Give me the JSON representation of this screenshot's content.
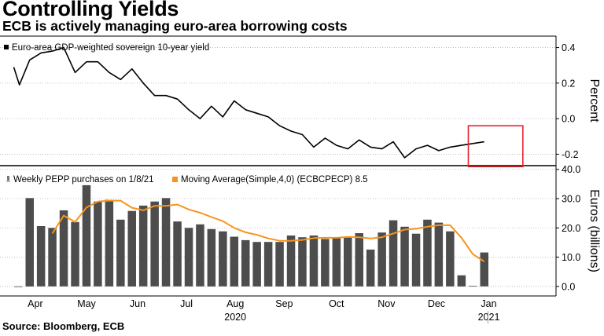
{
  "title": "Controlling Yields",
  "subtitle": "ECB is actively managing euro-area borrowing costs",
  "source": "Source: Bloomberg, ECB",
  "chart_data": [
    {
      "type": "line",
      "legend": "Euro-area GDP-weighted sovereign 10-year yield",
      "ylabel": "Percent",
      "ylim": [
        -0.26,
        0.46
      ],
      "yticks": [
        "0.4",
        "0.2",
        "0.0",
        "-0.2"
      ],
      "ytick_values": [
        0.4,
        0.2,
        0.0,
        -0.2
      ],
      "x_unit": "week index (0 = first week of April 2020)",
      "series": [
        {
          "color": "#000000",
          "x": [
            -1.4,
            -0.9,
            0,
            1,
            2,
            3,
            4,
            5,
            6,
            7,
            8,
            9,
            10,
            11,
            12,
            13,
            14,
            15,
            16,
            17,
            18,
            19,
            20,
            21,
            22,
            23,
            24,
            25,
            26,
            27,
            28,
            29,
            30,
            31,
            32,
            33,
            34,
            35,
            36,
            37,
            38,
            39,
            40
          ],
          "values": [
            0.29,
            0.19,
            0.33,
            0.37,
            0.38,
            0.4,
            0.26,
            0.32,
            0.32,
            0.26,
            0.22,
            0.28,
            0.2,
            0.13,
            0.13,
            0.11,
            0.05,
            0.0,
            0.07,
            0.01,
            0.1,
            0.05,
            0.03,
            0.01,
            -0.04,
            -0.07,
            -0.09,
            -0.16,
            -0.11,
            -0.15,
            -0.17,
            -0.12,
            -0.16,
            -0.17,
            -0.13,
            -0.22,
            -0.17,
            -0.15,
            -0.18,
            -0.16,
            -0.15,
            -0.14,
            -0.13
          ]
        }
      ],
      "highlight_box": {
        "x_range": [
          38.6,
          43.4
        ],
        "y_range": [
          -0.27,
          -0.04
        ],
        "color": "#e3242b"
      }
    },
    {
      "type": "bar",
      "ylabel": "Euros (billions)",
      "ylim": [
        -3,
        41
      ],
      "yticks": [
        "40.0",
        "30.0",
        "20.0",
        "10.0",
        "0.0"
      ],
      "ytick_values": [
        40,
        30,
        20,
        10,
        0
      ],
      "x_unit": "week index (0 = first week of April 2020)",
      "x": [
        -1,
        0,
        1,
        2,
        3,
        4,
        5,
        6,
        7,
        8,
        9,
        10,
        11,
        12,
        13,
        14,
        15,
        16,
        17,
        18,
        19,
        20,
        21,
        22,
        23,
        24,
        25,
        26,
        27,
        28,
        29,
        30,
        31,
        32,
        33,
        34,
        35,
        36,
        37,
        38,
        39,
        40
      ],
      "series": [
        {
          "name": "Weekly PEPP purchases on 1/8/21",
          "color": "#4d4d4d",
          "values": [
            0.0,
            30.2,
            20.6,
            20.0,
            26.0,
            22.0,
            34.6,
            29.0,
            29.6,
            22.8,
            25.8,
            27.6,
            29.0,
            30.2,
            22.2,
            20.0,
            21.2,
            19.6,
            18.8,
            17.0,
            15.8,
            15.2,
            15.2,
            15.2,
            17.4,
            16.8,
            17.4,
            16.2,
            16.8,
            16.8,
            18.2,
            12.6,
            18.4,
            22.6,
            20.4,
            18.0,
            22.8,
            21.8,
            18.8,
            3.8,
            0.2,
            11.6
          ]
        },
        {
          "name": "Moving Average(Simple,4,0) (ECBCPECP) 8.5",
          "type": "line",
          "color": "#f7941d",
          "x": [
            2,
            3,
            4,
            5,
            6,
            7,
            8,
            9,
            10,
            11,
            12,
            13,
            14,
            15,
            16,
            17,
            18,
            19,
            20,
            21,
            22,
            23,
            24,
            25,
            26,
            27,
            28,
            29,
            30,
            31,
            32,
            33,
            34,
            35,
            36,
            37,
            38,
            39,
            40
          ],
          "values": [
            18.1,
            24.2,
            22.0,
            27.0,
            29.0,
            29.3,
            29.3,
            26.9,
            26.0,
            27.5,
            27.5,
            28.0,
            26.3,
            25.2,
            23.7,
            22.3,
            20.0,
            18.5,
            17.6,
            16.4,
            15.6,
            15.6,
            15.9,
            16.5,
            16.6,
            16.6,
            16.9,
            16.8,
            16.4,
            16.8,
            18.1,
            19.4,
            19.7,
            20.4,
            20.9,
            20.9,
            16.6,
            11.0,
            8.5
          ]
        }
      ],
      "x_month_labels": [
        "Apr",
        "May",
        "Jun",
        "Jul",
        "Aug",
        "Sep",
        "Oct",
        "Nov",
        "Dec",
        "Jan"
      ],
      "x_month_centers": [
        0.5,
        5,
        9.5,
        13.8,
        18.1,
        22.4,
        27,
        31.4,
        35.8,
        40.4
      ],
      "x_year_labels": [
        "2020",
        "2021"
      ],
      "x_year_centers": [
        18.1,
        40.4
      ]
    }
  ]
}
